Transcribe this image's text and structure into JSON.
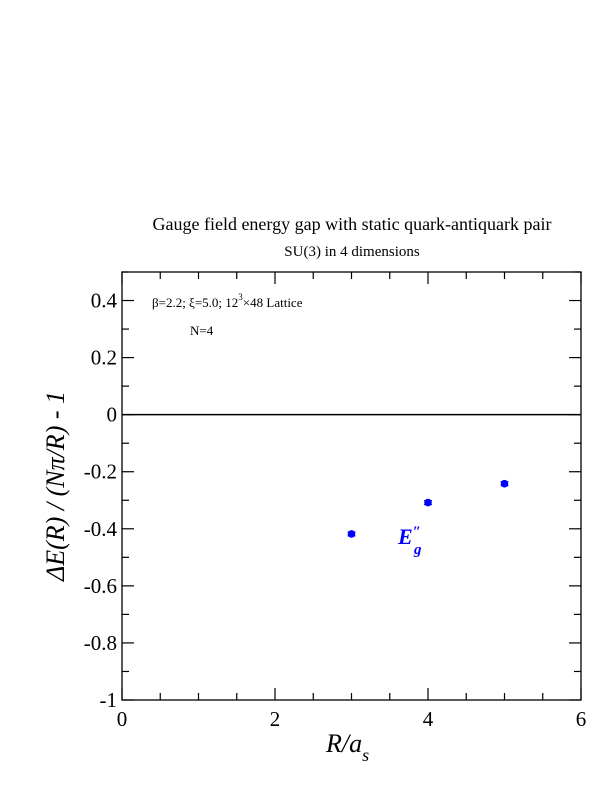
{
  "chart_data": {
    "type": "scatter",
    "title": "Gauge field energy gap with static quark-antiquark pair",
    "subtitle": "SU(3) in 4 dimensions",
    "xlabel": "R/a_s",
    "ylabel": "ΔE(R) / (Nπ/R) - 1",
    "xlim": [
      0,
      6
    ],
    "ylim": [
      -1,
      0.5
    ],
    "xticks": [
      "0",
      "2",
      "4",
      "6"
    ],
    "yticks": [
      "-1",
      "-0.8",
      "-0.6",
      "-0.4",
      "-0.2",
      "0",
      "0.2",
      "0.4"
    ],
    "annotations": {
      "params": "β=2.2; ξ=5.0; 12³×48 Lattice",
      "n": "N=4"
    },
    "series": [
      {
        "name": "E″g",
        "color": "#0000ff",
        "x": [
          3,
          4,
          5
        ],
        "y": [
          -0.418,
          -0.308,
          -0.242
        ]
      }
    ],
    "zero_line": true,
    "grid": false,
    "legend": "none"
  }
}
